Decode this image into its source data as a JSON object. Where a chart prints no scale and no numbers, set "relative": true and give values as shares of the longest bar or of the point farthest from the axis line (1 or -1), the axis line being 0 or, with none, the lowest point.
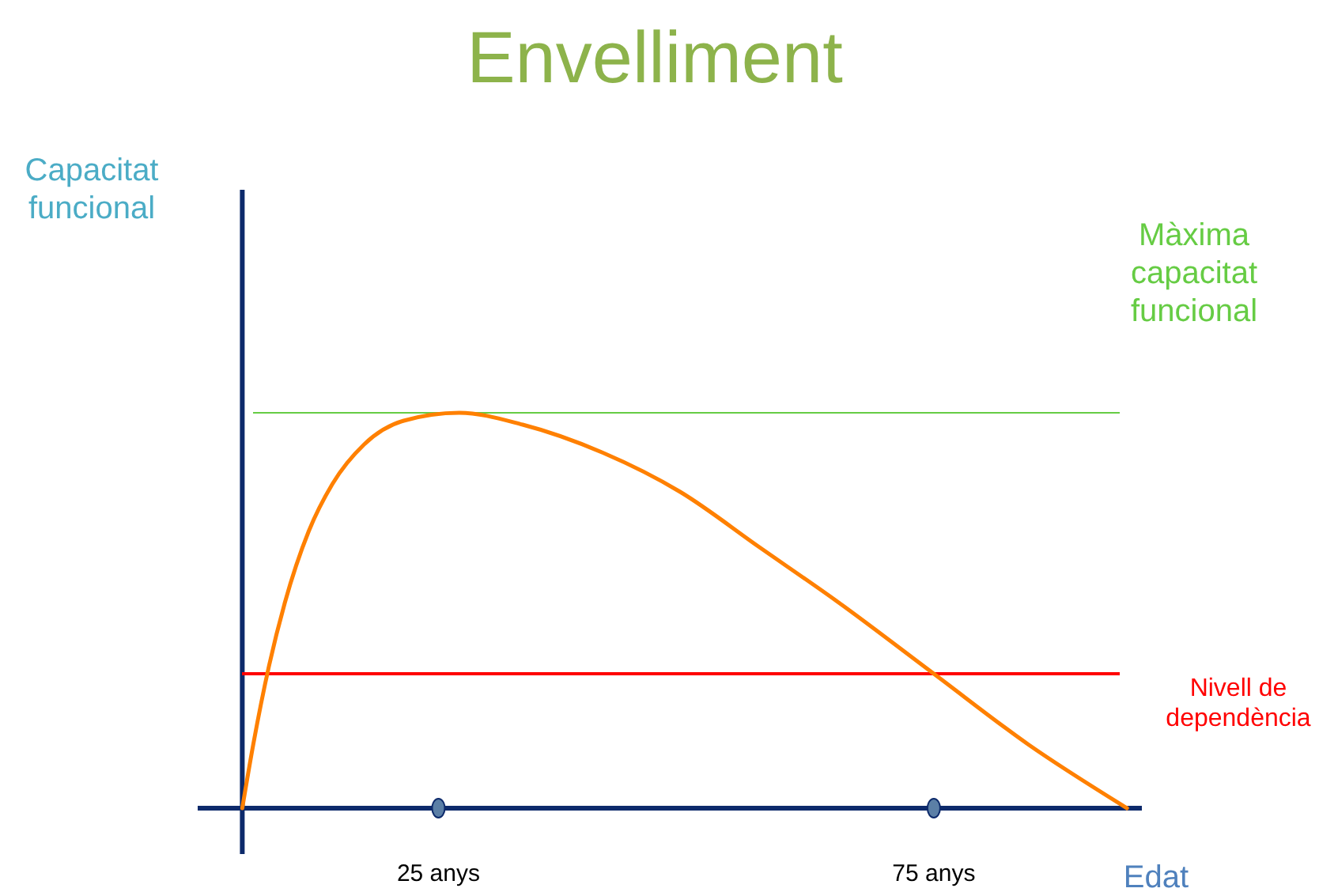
{
  "chart_data": {
    "type": "line",
    "title": "Envelliment",
    "annotations": [
      "Capacitat funcional"
    ],
    "xlabel": "Edat",
    "relative": true,
    "xlim": [
      0.7,
      96
    ],
    "xticks": [
      {
        "value": 25,
        "label": "25 anys"
      },
      {
        "value": 75,
        "label": "75 anys"
      }
    ],
    "tick_labels": "x",
    "grid": false,
    "marker": "none",
    "line_style": "solid",
    "series": [
      {
        "color": "#ff8000",
        "x": [
          5.2,
          6.3,
          7.9,
          9.5,
          11.9,
          14.3,
          17.5,
          21.5,
          27.1,
          33.5,
          41.5,
          49.4,
          57.4,
          65.4,
          75,
          84.6,
          94.5
        ],
        "values": [
          0,
          0.16,
          0.36,
          0.52,
          0.7,
          0.82,
          0.92,
          0.98,
          1,
          0.97,
          0.9,
          0.8,
          0.66,
          0.52,
          0.34,
          0.16,
          0
        ]
      }
    ],
    "ref_lines": [
      {
        "axis": "x",
        "value": 5.2,
        "color": "#0d2a6b"
      },
      {
        "axis": "y",
        "value": 1,
        "label": "Màxima capacitat funcional",
        "color": "#66cc44"
      },
      {
        "axis": "y",
        "value": 0.34,
        "label": "Nivell de dependència",
        "color": "#ff0000"
      }
    ]
  }
}
